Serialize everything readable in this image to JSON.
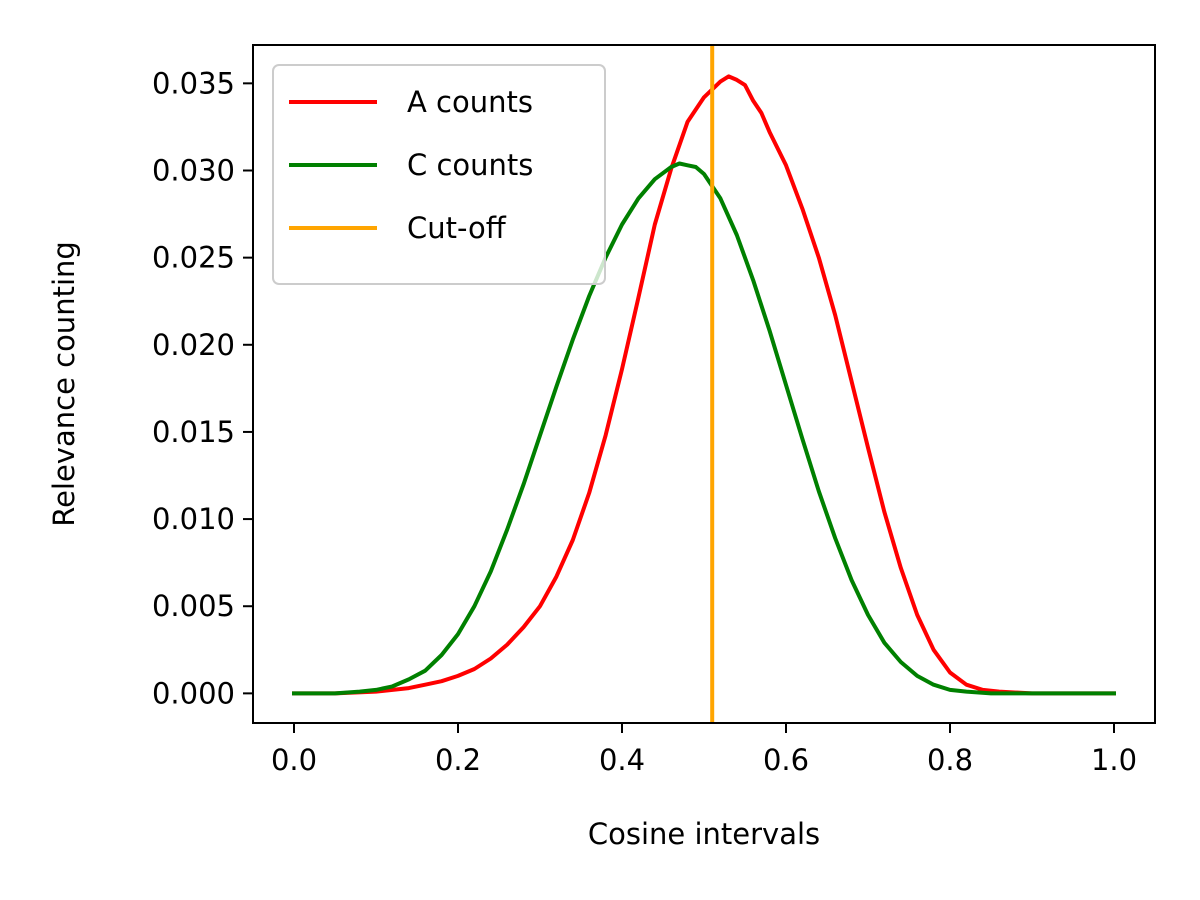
{
  "chart_data": {
    "type": "line",
    "title": "",
    "xlabel": "Cosine intervals",
    "ylabel": "Relevance counting",
    "xlim": [
      -0.05,
      1.05
    ],
    "ylim": [
      -0.0017,
      0.0372
    ],
    "xticks": [
      0.0,
      0.2,
      0.4,
      0.6,
      0.8,
      1.0
    ],
    "xtick_labels": [
      "0.0",
      "0.2",
      "0.4",
      "0.6",
      "0.8",
      "1.0"
    ],
    "yticks": [
      0.0,
      0.005,
      0.01,
      0.015,
      0.02,
      0.025,
      0.03,
      0.035
    ],
    "ytick_labels": [
      "0.000",
      "0.005",
      "0.010",
      "0.015",
      "0.020",
      "0.025",
      "0.030",
      "0.035"
    ],
    "grid": false,
    "legend_position": "top-left",
    "series": [
      {
        "name": "A counts",
        "color": "#ff0000",
        "x": [
          0.0,
          0.05,
          0.1,
          0.12,
          0.14,
          0.16,
          0.18,
          0.2,
          0.22,
          0.24,
          0.26,
          0.28,
          0.3,
          0.32,
          0.34,
          0.36,
          0.38,
          0.4,
          0.42,
          0.44,
          0.46,
          0.48,
          0.5,
          0.52,
          0.53,
          0.54,
          0.55,
          0.56,
          0.57,
          0.58,
          0.6,
          0.62,
          0.64,
          0.66,
          0.68,
          0.7,
          0.72,
          0.74,
          0.76,
          0.78,
          0.8,
          0.82,
          0.84,
          0.86,
          0.9,
          0.95,
          1.0
        ],
        "y": [
          0.0,
          0.0,
          0.0001,
          0.0002,
          0.0003,
          0.0005,
          0.0007,
          0.001,
          0.0014,
          0.002,
          0.0028,
          0.0038,
          0.005,
          0.0067,
          0.0088,
          0.0115,
          0.0148,
          0.0186,
          0.0227,
          0.0269,
          0.0301,
          0.0328,
          0.0342,
          0.0351,
          0.0354,
          0.0352,
          0.0349,
          0.034,
          0.0333,
          0.0322,
          0.0303,
          0.0278,
          0.025,
          0.0217,
          0.0179,
          0.0141,
          0.0104,
          0.0072,
          0.0045,
          0.0025,
          0.0012,
          0.0005,
          0.0002,
          0.0001,
          0.0,
          0.0,
          0.0
        ]
      },
      {
        "name": "C counts",
        "color": "#008000",
        "x": [
          0.0,
          0.05,
          0.08,
          0.1,
          0.12,
          0.14,
          0.16,
          0.18,
          0.2,
          0.22,
          0.24,
          0.26,
          0.28,
          0.3,
          0.32,
          0.34,
          0.36,
          0.38,
          0.4,
          0.42,
          0.44,
          0.46,
          0.47,
          0.48,
          0.49,
          0.5,
          0.52,
          0.54,
          0.56,
          0.58,
          0.6,
          0.62,
          0.64,
          0.66,
          0.68,
          0.7,
          0.72,
          0.74,
          0.76,
          0.78,
          0.8,
          0.82,
          0.85,
          0.9,
          0.95,
          1.0
        ],
        "y": [
          0.0,
          0.0,
          0.0001,
          0.0002,
          0.0004,
          0.0008,
          0.0013,
          0.0022,
          0.0034,
          0.005,
          0.007,
          0.0094,
          0.012,
          0.0148,
          0.0176,
          0.0203,
          0.0228,
          0.025,
          0.0269,
          0.0284,
          0.0295,
          0.0302,
          0.0304,
          0.0303,
          0.0302,
          0.0298,
          0.0284,
          0.0263,
          0.0237,
          0.0208,
          0.0177,
          0.0146,
          0.0116,
          0.0089,
          0.0065,
          0.0045,
          0.0029,
          0.0018,
          0.001,
          0.0005,
          0.0002,
          0.0001,
          0.0,
          0.0,
          0.0,
          0.0
        ]
      }
    ],
    "vlines": [
      {
        "name": "Cut-off",
        "color": "#ffa500",
        "x": 0.51
      }
    ]
  }
}
